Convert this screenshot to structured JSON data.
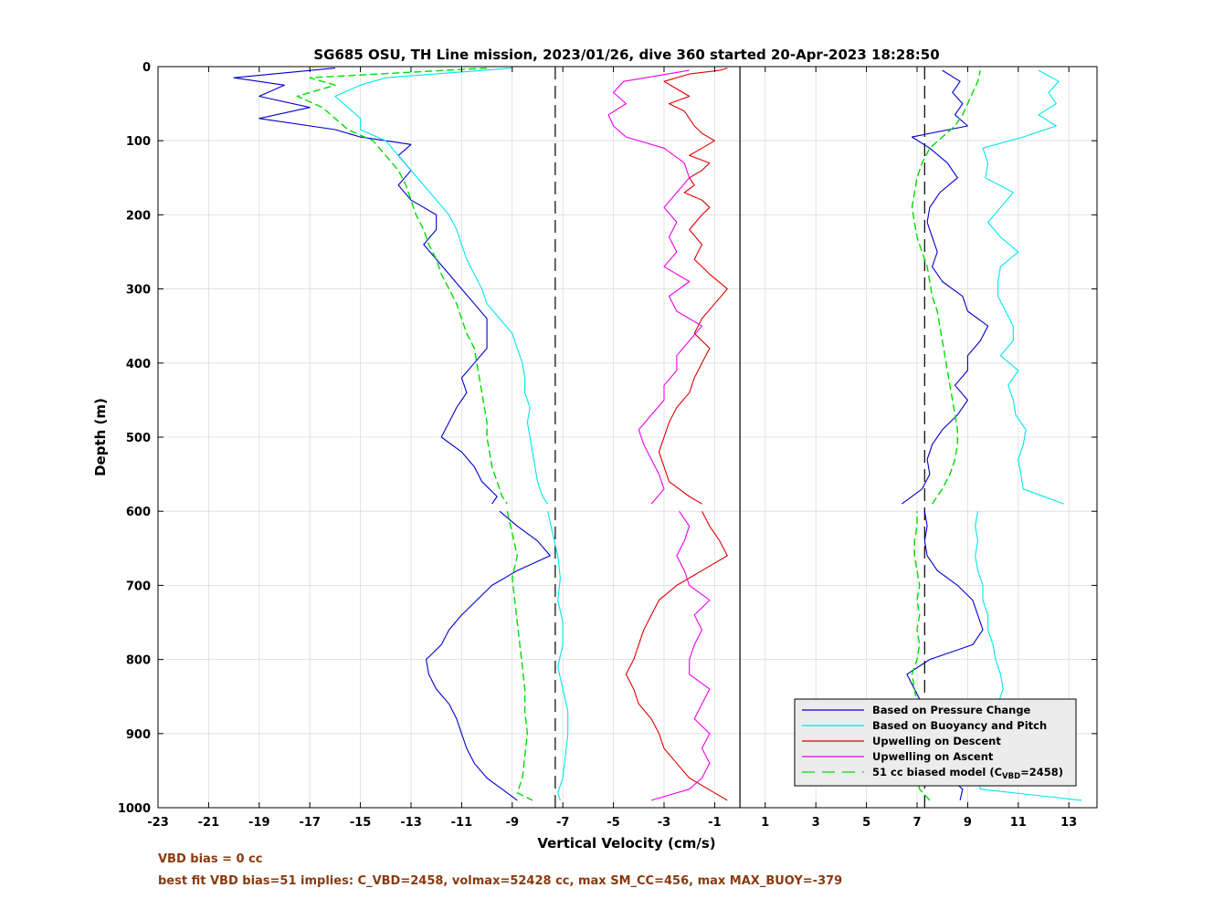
{
  "chart_data": {
    "type": "line",
    "title": "SG685 OSU, TH Line mission, 2023/01/26, dive 360 started 20-Apr-2023 18:28:50",
    "xlabel": "Vertical Velocity (cm/s)",
    "ylabel": "Depth (m)",
    "xlim": [
      -23,
      14
    ],
    "ylim": [
      0,
      1000
    ],
    "y_reversed": true,
    "grid": true,
    "legend_position": "bottom-right",
    "x_ticks": [
      "-23",
      "-21",
      "-19",
      "-17",
      "-15",
      "-13",
      "-11",
      "-9",
      "-7",
      "-5",
      "-3",
      "-1",
      "1",
      "3",
      "5",
      "7",
      "9",
      "11",
      "13"
    ],
    "y_ticks": [
      "0",
      "100",
      "200",
      "300",
      "400",
      "500",
      "600",
      "700",
      "800",
      "900",
      "1000"
    ],
    "reference_lines": [
      {
        "x": 0,
        "style": "solid",
        "color": "#000000"
      },
      {
        "x": -7.3,
        "style": "dashed",
        "color": "#000000"
      },
      {
        "x": 7.3,
        "style": "dashed",
        "color": "#000000"
      }
    ],
    "series": [
      {
        "name": "Based on Pressure Change",
        "color": "#0000cc",
        "dash": "solid",
        "profiles": [
          {
            "depth": [
              2,
              15,
              25,
              40,
              55,
              70,
              85,
              95,
              105,
              120,
              140,
              160,
              180,
              200,
              220,
              240,
              260,
              280,
              300,
              320,
              340,
              360,
              380,
              400,
              420,
              440,
              460,
              480,
              500,
              520,
              540,
              560,
              580,
              590
            ],
            "values": [
              -16,
              -20,
              -18,
              -19,
              -17,
              -19,
              -16,
              -15,
              -13,
              -13.5,
              -13,
              -13.5,
              -13,
              -12,
              -12,
              -12.5,
              -12,
              -11.5,
              -11,
              -10.5,
              -10,
              -10,
              -10,
              -10.5,
              -11,
              -10.8,
              -11.2,
              -11.5,
              -11.8,
              -11,
              -10.5,
              -10.2,
              -9.6,
              -9.8
            ]
          },
          {
            "depth": [
              600,
              620,
              640,
              660,
              680,
              700,
              720,
              740,
              760,
              780,
              800,
              820,
              840,
              860,
              880,
              900,
              920,
              940,
              960,
              975,
              990
            ],
            "values": [
              -9.5,
              -8.8,
              -8,
              -7.5,
              -8.8,
              -9.8,
              -10.4,
              -11,
              -11.5,
              -11.8,
              -12.4,
              -12.3,
              -12,
              -11.5,
              -11.2,
              -11,
              -10.8,
              -10.5,
              -10,
              -9.4,
              -8.8
            ]
          },
          {
            "depth": [
              990,
              975,
              960,
              940,
              920,
              900,
              880,
              860,
              840,
              820,
              800,
              780,
              760,
              740,
              720,
              700,
              680,
              660,
              640,
              620,
              600
            ],
            "values": [
              8.7,
              8.8,
              8.3,
              8,
              7.9,
              7.8,
              7.5,
              7.2,
              6.9,
              6.6,
              7.5,
              9.2,
              9.6,
              9.4,
              9.2,
              8.6,
              7.8,
              7.4,
              7.3,
              7.4,
              7.3
            ]
          },
          {
            "depth": [
              590,
              570,
              550,
              530,
              510,
              490,
              470,
              450,
              430,
              410,
              390,
              370,
              350,
              330,
              310,
              290,
              270,
              250,
              230,
              210,
              190,
              170,
              150,
              130,
              110,
              95,
              80,
              65,
              50,
              35,
              20,
              5
            ],
            "values": [
              6.4,
              7.2,
              7.5,
              7.4,
              7.6,
              8,
              8.6,
              9,
              8.5,
              9,
              9,
              9.5,
              9.8,
              9,
              8.8,
              8,
              7.6,
              7.8,
              7.6,
              7.4,
              7.5,
              7.9,
              8.6,
              8.2,
              7.5,
              6.8,
              9,
              8.5,
              8.8,
              8.4,
              8.7,
              8
            ]
          }
        ]
      },
      {
        "name": "Based on Buoyancy and Pitch",
        "color": "#00e5ee",
        "dash": "solid",
        "profiles": [
          {
            "depth": [
              2,
              15,
              25,
              40,
              55,
              70,
              85,
              100,
              120,
              140,
              160,
              180,
              200,
              220,
              240,
              260,
              280,
              300,
              320,
              340,
              360,
              380,
              400,
              420,
              440,
              460,
              480,
              500,
              520,
              540,
              560,
              580,
              590
            ],
            "values": [
              -9,
              -14,
              -15,
              -16,
              -15.5,
              -15,
              -15,
              -14,
              -13.5,
              -13,
              -12.5,
              -12,
              -11.5,
              -11.2,
              -11,
              -10.8,
              -10.5,
              -10.2,
              -10,
              -9.5,
              -9,
              -8.8,
              -8.6,
              -8.5,
              -8.5,
              -8.3,
              -8.4,
              -8.3,
              -8.2,
              -8.1,
              -8,
              -7.8,
              -7.6
            ]
          },
          {
            "depth": [
              600,
              630,
              660,
              690,
              720,
              750,
              780,
              810,
              840,
              870,
              900,
              930,
              960,
              980,
              990
            ],
            "values": [
              -7.6,
              -7.4,
              -7.2,
              -7.1,
              -7.2,
              -7,
              -7,
              -7.2,
              -7,
              -6.8,
              -6.8,
              -6.9,
              -7,
              -7.2,
              -7.1
            ]
          },
          {
            "depth": [
              990,
              975,
              960,
              940,
              920,
              900,
              880,
              860,
              840,
              820,
              800,
              780,
              760,
              740,
              720,
              700,
              680,
              660,
              640,
              620,
              600
            ],
            "values": [
              13.5,
              9.5,
              9.4,
              9.3,
              9.6,
              9.8,
              10,
              10.2,
              10.4,
              10.3,
              10.1,
              10,
              9.8,
              9.8,
              9.6,
              9.6,
              9.4,
              9.3,
              9.4,
              9.3,
              9.4
            ]
          },
          {
            "depth": [
              590,
              570,
              550,
              530,
              510,
              490,
              470,
              450,
              430,
              410,
              390,
              370,
              350,
              330,
              310,
              290,
              270,
              250,
              230,
              210,
              190,
              170,
              150,
              130,
              110,
              95,
              80,
              65,
              50,
              35,
              20,
              5
            ],
            "values": [
              12.8,
              11.2,
              11.1,
              11,
              11.2,
              11.3,
              10.9,
              10.8,
              10.6,
              11,
              10.3,
              10.8,
              10.8,
              10.5,
              10.2,
              10.2,
              10.3,
              11,
              10.3,
              9.8,
              10.3,
              10.8,
              9.7,
              9.8,
              9.6,
              11.2,
              12.5,
              11.8,
              12.5,
              12.2,
              12.6,
              11.8
            ]
          }
        ]
      },
      {
        "name": "Upwelling on Descent",
        "color": "#dd0000",
        "dash": "solid",
        "profiles": [
          {
            "depth": [
              2,
              5,
              10,
              20,
              30,
              40,
              50,
              60,
              70,
              80,
              90,
              100,
              110,
              120,
              130,
              140,
              150,
              160,
              170,
              180,
              190,
              200,
              220,
              240,
              260,
              280,
              300,
              320,
              340,
              360,
              380,
              400,
              420,
              440,
              460,
              480,
              500,
              520,
              540,
              560,
              580,
              590
            ],
            "values": [
              -0.5,
              -0.8,
              -2,
              -3,
              -2.5,
              -2,
              -2.8,
              -2.2,
              -2,
              -1.8,
              -1.5,
              -1,
              -1.5,
              -2,
              -1.2,
              -1.5,
              -2,
              -1.8,
              -2.2,
              -1.5,
              -1.2,
              -1.5,
              -2,
              -1.5,
              -1.8,
              -1.2,
              -0.5,
              -1,
              -1.5,
              -1.8,
              -1.2,
              -1.5,
              -1.8,
              -2,
              -2.5,
              -2.8,
              -3,
              -3.2,
              -3,
              -2.8,
              -2,
              -1.5
            ]
          },
          {
            "depth": [
              600,
              620,
              640,
              660,
              680,
              700,
              720,
              740,
              760,
              780,
              800,
              820,
              840,
              860,
              880,
              900,
              920,
              940,
              960,
              980,
              990
            ],
            "values": [
              -1.5,
              -1.2,
              -0.8,
              -0.5,
              -1.5,
              -2.5,
              -3.2,
              -3.5,
              -3.8,
              -4,
              -4.2,
              -4.5,
              -4.2,
              -4,
              -3.5,
              -3.2,
              -3,
              -2.5,
              -2,
              -1,
              -0.5
            ]
          }
        ]
      },
      {
        "name": "Upwelling on Ascent",
        "color": "#ee00ee",
        "dash": "solid",
        "profiles": [
          {
            "depth": [
              990,
              975,
              960,
              940,
              920,
              900,
              880,
              860,
              840,
              820,
              800,
              780,
              760,
              740,
              720,
              700,
              680,
              660,
              640,
              620,
              600
            ],
            "values": [
              -3.5,
              -2,
              -1.5,
              -1.2,
              -1.5,
              -1.2,
              -1.8,
              -1.5,
              -1.2,
              -2,
              -2,
              -1.8,
              -1.5,
              -1.8,
              -1.2,
              -2,
              -2.2,
              -2.5,
              -2.2,
              -2,
              -2.4
            ]
          },
          {
            "depth": [
              590,
              570,
              550,
              530,
              510,
              490,
              470,
              450,
              430,
              410,
              390,
              370,
              350,
              330,
              310,
              290,
              270,
              250,
              230,
              210,
              190,
              170,
              150,
              130,
              110,
              95,
              80,
              65,
              50,
              35,
              20,
              5
            ],
            "values": [
              -3.5,
              -3,
              -3.2,
              -3.5,
              -3.8,
              -4,
              -3.5,
              -3,
              -3,
              -2.5,
              -2.5,
              -2,
              -1.5,
              -2.5,
              -2.8,
              -2,
              -3,
              -2.5,
              -2.8,
              -2.5,
              -3,
              -2.5,
              -2,
              -2.2,
              -3,
              -4.5,
              -5,
              -5.2,
              -4.5,
              -5,
              -4.6,
              -2
            ]
          }
        ]
      },
      {
        "name": "51 cc biased model (C_VBD=2458)",
        "legend_main": "51 cc biased model (C",
        "legend_sub": "VBD",
        "legend_end": "=2458)",
        "color": "#00dd00",
        "dash": "dashed",
        "profiles": [
          {
            "depth": [
              2,
              15,
              25,
              40,
              55,
              70,
              85,
              100,
              120,
              140,
              160,
              180,
              200,
              220,
              240,
              260,
              280,
              300,
              320,
              340,
              360,
              380,
              400,
              420,
              440,
              460,
              480,
              500,
              520,
              540,
              560,
              580,
              590
            ],
            "values": [
              -10,
              -17,
              -16,
              -17.5,
              -16.5,
              -16,
              -15.5,
              -14.5,
              -14,
              -13.5,
              -13.2,
              -13,
              -12.8,
              -12.5,
              -12.3,
              -12,
              -11.8,
              -11.5,
              -11.2,
              -11,
              -10.8,
              -10.5,
              -10.4,
              -10.3,
              -10.2,
              -10.1,
              -10,
              -10,
              -9.9,
              -9.8,
              -9.6,
              -9.4,
              -9.2
            ]
          },
          {
            "depth": [
              600,
              630,
              660,
              690,
              720,
              750,
              780,
              810,
              840,
              870,
              900,
              930,
              960,
              980,
              990
            ],
            "values": [
              -9.2,
              -9,
              -8.8,
              -9,
              -8.9,
              -8.8,
              -8.7,
              -8.6,
              -8.5,
              -8.5,
              -8.4,
              -8.5,
              -8.6,
              -8.8,
              -8.2
            ]
          },
          {
            "depth": [
              990,
              975,
              960,
              940,
              920,
              900,
              880,
              860,
              840,
              820,
              800,
              780,
              760,
              740,
              720,
              700,
              680,
              660,
              640,
              620,
              600
            ],
            "values": [
              7.5,
              7.1,
              7,
              7,
              7.1,
              7.1,
              7.2,
              7,
              6.9,
              6.8,
              7,
              7.1,
              7,
              7.1,
              7,
              7.1,
              7,
              6.9,
              6.9,
              7,
              7
            ]
          },
          {
            "depth": [
              590,
              570,
              550,
              530,
              510,
              490,
              470,
              450,
              430,
              410,
              390,
              370,
              350,
              330,
              310,
              290,
              270,
              250,
              230,
              210,
              190,
              170,
              150,
              130,
              110,
              95,
              80,
              65,
              50,
              35,
              20,
              5
            ],
            "values": [
              7.6,
              8,
              8.3,
              8.5,
              8.6,
              8.6,
              8.5,
              8.4,
              8.3,
              8.2,
              8.1,
              8,
              7.9,
              7.8,
              7.6,
              7.5,
              7.4,
              7.2,
              7,
              6.9,
              6.8,
              6.9,
              7,
              7.2,
              7.5,
              8,
              8.5,
              8.8,
              9,
              9.2,
              9.4,
              9.5
            ]
          }
        ]
      }
    ]
  },
  "notes": {
    "vbd_bias": "VBD bias = 0 cc",
    "best_fit": "best fit VBD bias=51 implies: C_VBD=2458, volmax=52428 cc, max SM_CC=456, max MAX_BUOY=-379"
  }
}
